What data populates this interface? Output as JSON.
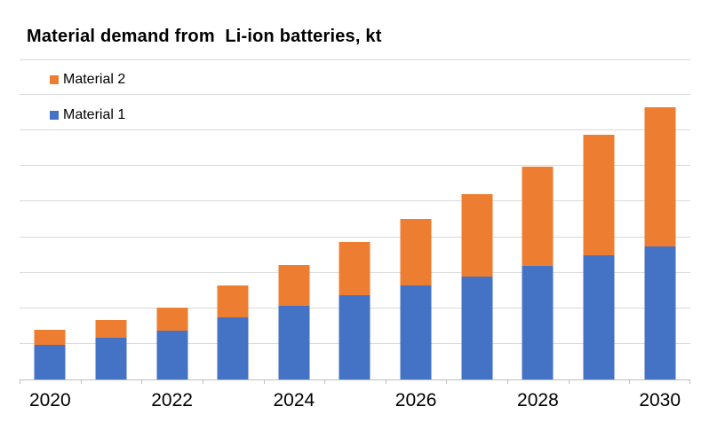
{
  "chart_data": {
    "type": "bar",
    "stacked": true,
    "title": "Material demand from  Li-ion batteries, kt",
    "categories": [
      "2020",
      "2021",
      "2022",
      "2023",
      "2024",
      "2025",
      "2026",
      "2027",
      "2028",
      "2029",
      "2030"
    ],
    "x_tick_labels": [
      "2020",
      "2022",
      "2024",
      "2026",
      "2028",
      "2030"
    ],
    "series": [
      {
        "name": "Material 1",
        "color": "#4472C4",
        "values": [
          49,
          58,
          69,
          87,
          104,
          118,
          132,
          144,
          159,
          174,
          187
        ]
      },
      {
        "name": "Material 2",
        "color": "#ED7D31",
        "values": [
          21,
          25,
          32,
          45,
          57,
          75,
          94,
          117,
          140,
          170,
          196
        ]
      }
    ],
    "ylim": [
      0,
      450
    ],
    "gridline_step": 50,
    "y_axis_labels_visible": false,
    "grid": true,
    "gridline_color": "#D9D9D9",
    "axis_line_color": "#BFBFBF",
    "text_color": "#000000",
    "background_color": "#FFFFFF",
    "legend": {
      "position": "top-left",
      "entries": [
        {
          "label": "Material 2",
          "color": "#ED7D31"
        },
        {
          "label": "Material 1",
          "color": "#4472C4"
        }
      ]
    }
  }
}
